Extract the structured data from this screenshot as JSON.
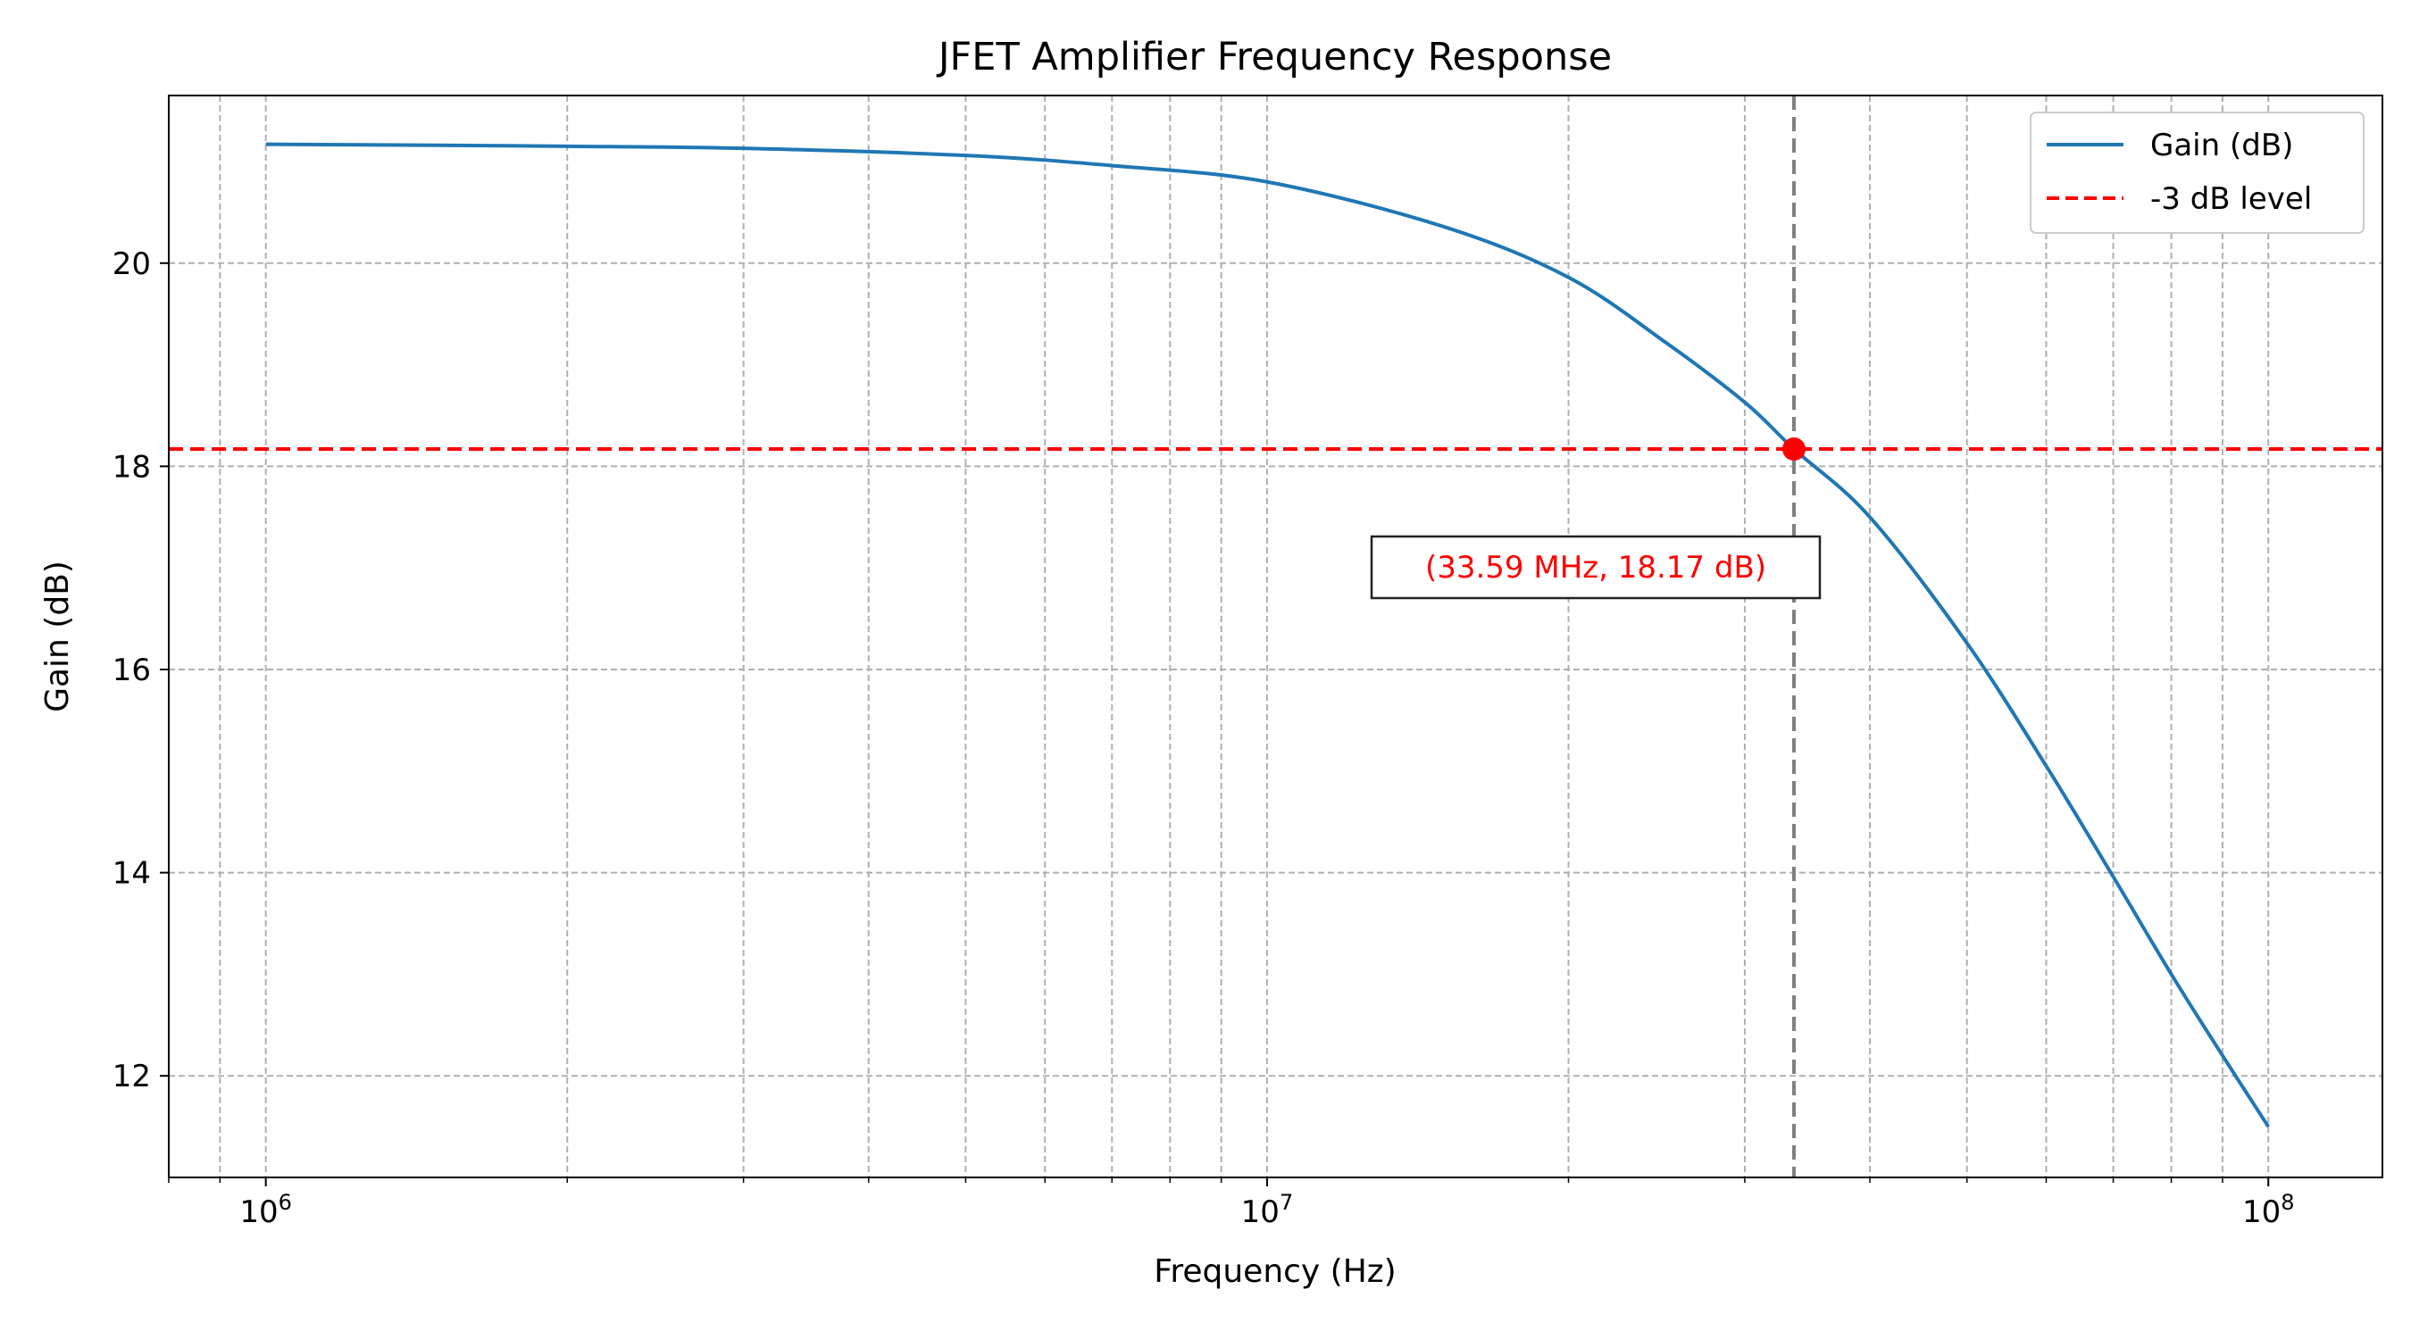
{
  "chart_data": {
    "type": "line",
    "title": "JFET Amplifier Frequency Response",
    "xlabel": "Frequency (Hz)",
    "ylabel": "Gain (dB)",
    "xscale": "log",
    "xlim": [
      800000,
      130000000
    ],
    "ylim": [
      11.0,
      21.65
    ],
    "grid": "both (major and minor), dashed gray",
    "legend_position": "top-right",
    "x_ticks": [
      {
        "value": 1000000,
        "base": "10",
        "exp": "6"
      },
      {
        "value": 10000000,
        "base": "10",
        "exp": "7"
      },
      {
        "value": 100000000,
        "base": "10",
        "exp": "8"
      }
    ],
    "y_ticks": [
      12,
      14,
      16,
      18,
      20
    ],
    "y_tick_labels": [
      "12",
      "14",
      "16",
      "18",
      "20"
    ],
    "series": [
      {
        "name": "Gain (dB)",
        "color": "#1f77b4",
        "style": "solid",
        "x": [
          1000000,
          1500000,
          2000000,
          3000000,
          5000000,
          7000000,
          10000000,
          15000000,
          20000000,
          25000000,
          30000000,
          33590000,
          40000000,
          50000000,
          60000000,
          70000000,
          80000000,
          90000000,
          100000000
        ],
        "y": [
          21.17,
          21.16,
          21.15,
          21.13,
          21.06,
          20.96,
          20.8,
          20.36,
          19.86,
          19.22,
          18.63,
          18.17,
          17.5,
          16.26,
          15.05,
          13.96,
          13.0,
          12.2,
          11.5
        ]
      }
    ],
    "reference_lines": [
      {
        "name": "-3 dB level",
        "orientation": "horizontal",
        "value": 18.17,
        "color": "#ff0000",
        "style": "dashed"
      },
      {
        "orientation": "vertical",
        "value": 33590000,
        "color": "#808080",
        "style": "dashed"
      }
    ],
    "marker": {
      "x": 33590000,
      "y": 18.17,
      "color": "#ff0000"
    },
    "annotation": {
      "text": "(33.59 MHz, 18.17 dB)",
      "color": "#ff0000"
    }
  }
}
